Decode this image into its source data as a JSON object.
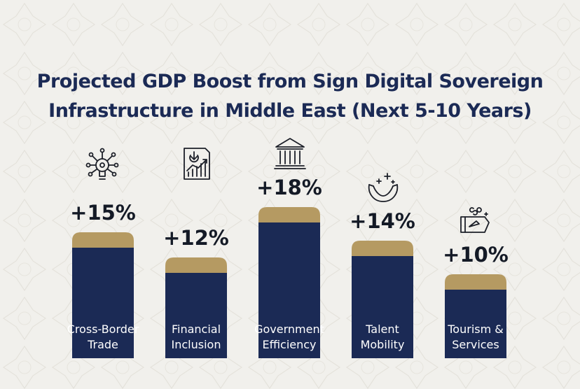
{
  "chart_data": {
    "type": "bar",
    "title": "Projected GDP Boost from Sign Digital Sovereign Infrastructure in Middle East (Next 5-10 Years)",
    "categories": [
      {
        "line1": "Cross-Border",
        "line2": "Trade",
        "icon": "network-bulb-icon"
      },
      {
        "line1": "Financial",
        "line2": "Inclusion",
        "icon": "growth-document-icon"
      },
      {
        "line1": "Government",
        "line2": "Efficiency",
        "icon": "government-building-icon"
      },
      {
        "line1": "Talent",
        "line2": "Mobility",
        "icon": "hands-sparkle-icon"
      },
      {
        "line1": "Tourism &",
        "line2": "Services",
        "icon": "travel-ticket-icon"
      }
    ],
    "values": [
      15,
      12,
      18,
      14,
      10
    ],
    "value_labels": [
      "+15%",
      "+12%",
      "+18%",
      "+14%",
      "+10%"
    ],
    "unit": "%",
    "ylim": [
      0,
      18
    ],
    "xlabel": "",
    "ylabel": "",
    "grid": false,
    "legend": "none",
    "colors": {
      "bar": "#1b2a55",
      "cap": "#b59a62",
      "title": "#1b2a55",
      "value_text": "#141a26",
      "category_text": "#ffffff",
      "background": "#f1f0ec"
    }
  }
}
